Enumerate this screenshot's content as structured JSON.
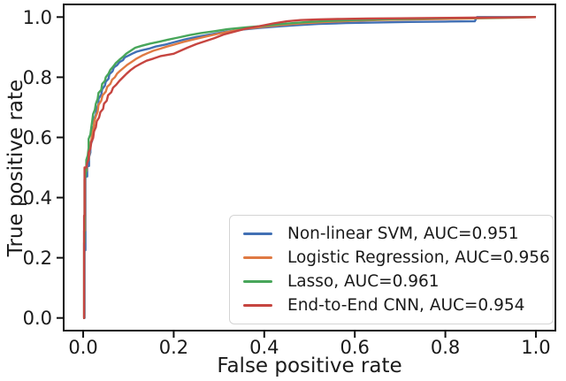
{
  "chart_data": {
    "type": "line",
    "title": "",
    "xlabel": "False positive rate",
    "ylabel": "True positive rate",
    "xlim": [
      -0.045,
      1.045
    ],
    "ylim": [
      -0.045,
      1.045
    ],
    "x_tick_values": [
      0.0,
      0.2,
      0.4,
      0.6,
      0.8,
      1.0
    ],
    "x_tick_labels": [
      "0.0",
      "0.2",
      "0.4",
      "0.6",
      "0.8",
      "1.0"
    ],
    "y_tick_values": [
      0.0,
      0.2,
      0.4,
      0.6,
      0.8,
      1.0
    ],
    "y_tick_labels": [
      "0.0",
      "0.2",
      "0.4",
      "0.6",
      "0.8",
      "1.0"
    ],
    "grid": false,
    "legend_position": "lower right",
    "series": [
      {
        "id": "non-linear-svm",
        "name": "Non-linear SVM",
        "auc": 0.951,
        "label": "Non-linear SVM, AUC=0.951",
        "color": "#4170b4",
        "points": [
          [
            0,
            0
          ],
          [
            0.003,
            0
          ],
          [
            0.003,
            0.225
          ],
          [
            0.005,
            0.225
          ],
          [
            0.005,
            0.47
          ],
          [
            0.009,
            0.47
          ],
          [
            0.009,
            0.505
          ],
          [
            0.013,
            0.505
          ],
          [
            0.013,
            0.535
          ],
          [
            0.016,
            0.55
          ],
          [
            0.016,
            0.575
          ],
          [
            0.02,
            0.59
          ],
          [
            0.02,
            0.625
          ],
          [
            0.024,
            0.64
          ],
          [
            0.024,
            0.66
          ],
          [
            0.028,
            0.675
          ],
          [
            0.03,
            0.695
          ],
          [
            0.034,
            0.71
          ],
          [
            0.034,
            0.728
          ],
          [
            0.04,
            0.742
          ],
          [
            0.042,
            0.76
          ],
          [
            0.048,
            0.772
          ],
          [
            0.05,
            0.785
          ],
          [
            0.056,
            0.795
          ],
          [
            0.058,
            0.81
          ],
          [
            0.065,
            0.82
          ],
          [
            0.068,
            0.833
          ],
          [
            0.075,
            0.84
          ],
          [
            0.08,
            0.85
          ],
          [
            0.088,
            0.857
          ],
          [
            0.092,
            0.866
          ],
          [
            0.1,
            0.872
          ],
          [
            0.108,
            0.878
          ],
          [
            0.118,
            0.885
          ],
          [
            0.13,
            0.89
          ],
          [
            0.145,
            0.895
          ],
          [
            0.16,
            0.902
          ],
          [
            0.18,
            0.908
          ],
          [
            0.2,
            0.916
          ],
          [
            0.225,
            0.926
          ],
          [
            0.25,
            0.934
          ],
          [
            0.28,
            0.942
          ],
          [
            0.31,
            0.95
          ],
          [
            0.35,
            0.958
          ],
          [
            0.39,
            0.964
          ],
          [
            0.43,
            0.969
          ],
          [
            0.47,
            0.973
          ],
          [
            0.52,
            0.977
          ],
          [
            0.58,
            0.98
          ],
          [
            0.65,
            0.982
          ],
          [
            0.72,
            0.984
          ],
          [
            0.8,
            0.985
          ],
          [
            0.865,
            0.986
          ],
          [
            0.87,
            1.0
          ],
          [
            1.0,
            1.0
          ]
        ]
      },
      {
        "id": "logistic-regression",
        "name": "Logistic Regression",
        "auc": 0.956,
        "label": "Logistic Regression, AUC=0.956",
        "color": "#df7a43",
        "points": [
          [
            0,
            0
          ],
          [
            0.002,
            0
          ],
          [
            0.002,
            0.29
          ],
          [
            0.004,
            0.29
          ],
          [
            0.004,
            0.48
          ],
          [
            0.008,
            0.49
          ],
          [
            0.008,
            0.515
          ],
          [
            0.012,
            0.525
          ],
          [
            0.014,
            0.55
          ],
          [
            0.014,
            0.575
          ],
          [
            0.018,
            0.59
          ],
          [
            0.02,
            0.615
          ],
          [
            0.023,
            0.63
          ],
          [
            0.025,
            0.655
          ],
          [
            0.028,
            0.67
          ],
          [
            0.032,
            0.685
          ],
          [
            0.034,
            0.708
          ],
          [
            0.04,
            0.722
          ],
          [
            0.043,
            0.74
          ],
          [
            0.05,
            0.752
          ],
          [
            0.053,
            0.768
          ],
          [
            0.06,
            0.778
          ],
          [
            0.064,
            0.792
          ],
          [
            0.07,
            0.8
          ],
          [
            0.075,
            0.812
          ],
          [
            0.082,
            0.822
          ],
          [
            0.09,
            0.832
          ],
          [
            0.098,
            0.842
          ],
          [
            0.108,
            0.852
          ],
          [
            0.118,
            0.862
          ],
          [
            0.13,
            0.872
          ],
          [
            0.142,
            0.88
          ],
          [
            0.155,
            0.888
          ],
          [
            0.17,
            0.895
          ],
          [
            0.185,
            0.902
          ],
          [
            0.2,
            0.908
          ],
          [
            0.22,
            0.917
          ],
          [
            0.245,
            0.926
          ],
          [
            0.27,
            0.935
          ],
          [
            0.3,
            0.945
          ],
          [
            0.33,
            0.954
          ],
          [
            0.36,
            0.961
          ],
          [
            0.4,
            0.968
          ],
          [
            0.44,
            0.974
          ],
          [
            0.48,
            0.979
          ],
          [
            0.53,
            0.983
          ],
          [
            0.59,
            0.987
          ],
          [
            0.65,
            0.99
          ],
          [
            0.72,
            0.992
          ],
          [
            0.8,
            0.994
          ],
          [
            0.88,
            0.996
          ],
          [
            0.95,
            0.998
          ],
          [
            1.0,
            1.0
          ]
        ]
      },
      {
        "id": "lasso",
        "name": "Lasso",
        "auc": 0.961,
        "label": "Lasso, AUC=0.961",
        "color": "#48a65a",
        "points": [
          [
            0,
            0
          ],
          [
            0.002,
            0
          ],
          [
            0.002,
            0.25
          ],
          [
            0.003,
            0.25
          ],
          [
            0.003,
            0.46
          ],
          [
            0.005,
            0.47
          ],
          [
            0.007,
            0.495
          ],
          [
            0.007,
            0.525
          ],
          [
            0.01,
            0.54
          ],
          [
            0.012,
            0.565
          ],
          [
            0.012,
            0.595
          ],
          [
            0.016,
            0.61
          ],
          [
            0.018,
            0.635
          ],
          [
            0.02,
            0.655
          ],
          [
            0.022,
            0.678
          ],
          [
            0.026,
            0.692
          ],
          [
            0.028,
            0.712
          ],
          [
            0.032,
            0.728
          ],
          [
            0.034,
            0.748
          ],
          [
            0.04,
            0.758
          ],
          [
            0.042,
            0.778
          ],
          [
            0.048,
            0.788
          ],
          [
            0.05,
            0.8
          ],
          [
            0.056,
            0.812
          ],
          [
            0.06,
            0.825
          ],
          [
            0.066,
            0.835
          ],
          [
            0.072,
            0.847
          ],
          [
            0.08,
            0.858
          ],
          [
            0.088,
            0.868
          ],
          [
            0.095,
            0.878
          ],
          [
            0.105,
            0.888
          ],
          [
            0.115,
            0.898
          ],
          [
            0.13,
            0.905
          ],
          [
            0.148,
            0.912
          ],
          [
            0.168,
            0.918
          ],
          [
            0.188,
            0.925
          ],
          [
            0.21,
            0.932
          ],
          [
            0.235,
            0.94
          ],
          [
            0.26,
            0.947
          ],
          [
            0.29,
            0.953
          ],
          [
            0.32,
            0.96
          ],
          [
            0.36,
            0.966
          ],
          [
            0.4,
            0.971
          ],
          [
            0.44,
            0.977
          ],
          [
            0.49,
            0.983
          ],
          [
            0.54,
            0.987
          ],
          [
            0.6,
            0.99
          ],
          [
            0.67,
            0.993
          ],
          [
            0.75,
            0.995
          ],
          [
            0.83,
            0.997
          ],
          [
            0.91,
            0.998
          ],
          [
            1.0,
            1.0
          ]
        ]
      },
      {
        "id": "end-to-end-cnn",
        "name": "End-to-End CNN",
        "auc": 0.954,
        "label": "End-to-End CNN, AUC=0.954",
        "color": "#c64540",
        "points": [
          [
            0,
            0
          ],
          [
            0.002,
            0
          ],
          [
            0.002,
            0.34
          ],
          [
            0.003,
            0.34
          ],
          [
            0.003,
            0.5
          ],
          [
            0.007,
            0.5
          ],
          [
            0.009,
            0.515
          ],
          [
            0.012,
            0.528
          ],
          [
            0.012,
            0.55
          ],
          [
            0.016,
            0.562
          ],
          [
            0.018,
            0.585
          ],
          [
            0.022,
            0.598
          ],
          [
            0.024,
            0.62
          ],
          [
            0.028,
            0.634
          ],
          [
            0.03,
            0.654
          ],
          [
            0.035,
            0.666
          ],
          [
            0.038,
            0.684
          ],
          [
            0.044,
            0.695
          ],
          [
            0.046,
            0.712
          ],
          [
            0.052,
            0.722
          ],
          [
            0.055,
            0.74
          ],
          [
            0.062,
            0.75
          ],
          [
            0.066,
            0.765
          ],
          [
            0.073,
            0.775
          ],
          [
            0.08,
            0.788
          ],
          [
            0.088,
            0.8
          ],
          [
            0.096,
            0.812
          ],
          [
            0.105,
            0.824
          ],
          [
            0.115,
            0.835
          ],
          [
            0.127,
            0.845
          ],
          [
            0.14,
            0.855
          ],
          [
            0.155,
            0.862
          ],
          [
            0.17,
            0.87
          ],
          [
            0.185,
            0.874
          ],
          [
            0.2,
            0.878
          ],
          [
            0.215,
            0.888
          ],
          [
            0.23,
            0.898
          ],
          [
            0.25,
            0.91
          ],
          [
            0.27,
            0.92
          ],
          [
            0.29,
            0.93
          ],
          [
            0.31,
            0.942
          ],
          [
            0.335,
            0.952
          ],
          [
            0.36,
            0.962
          ],
          [
            0.39,
            0.97
          ],
          [
            0.42,
            0.979
          ],
          [
            0.45,
            0.986
          ],
          [
            0.48,
            0.99
          ],
          [
            0.52,
            0.992
          ],
          [
            0.57,
            0.994
          ],
          [
            0.63,
            0.995
          ],
          [
            0.7,
            0.996
          ],
          [
            0.78,
            0.997
          ],
          [
            0.86,
            0.998
          ],
          [
            0.93,
            0.999
          ],
          [
            1.0,
            1.0
          ]
        ]
      }
    ]
  },
  "colors": {
    "spine": "#111111",
    "text": "#1a1a1a",
    "legend_border": "#d4d4d4",
    "background": "#ffffff"
  }
}
